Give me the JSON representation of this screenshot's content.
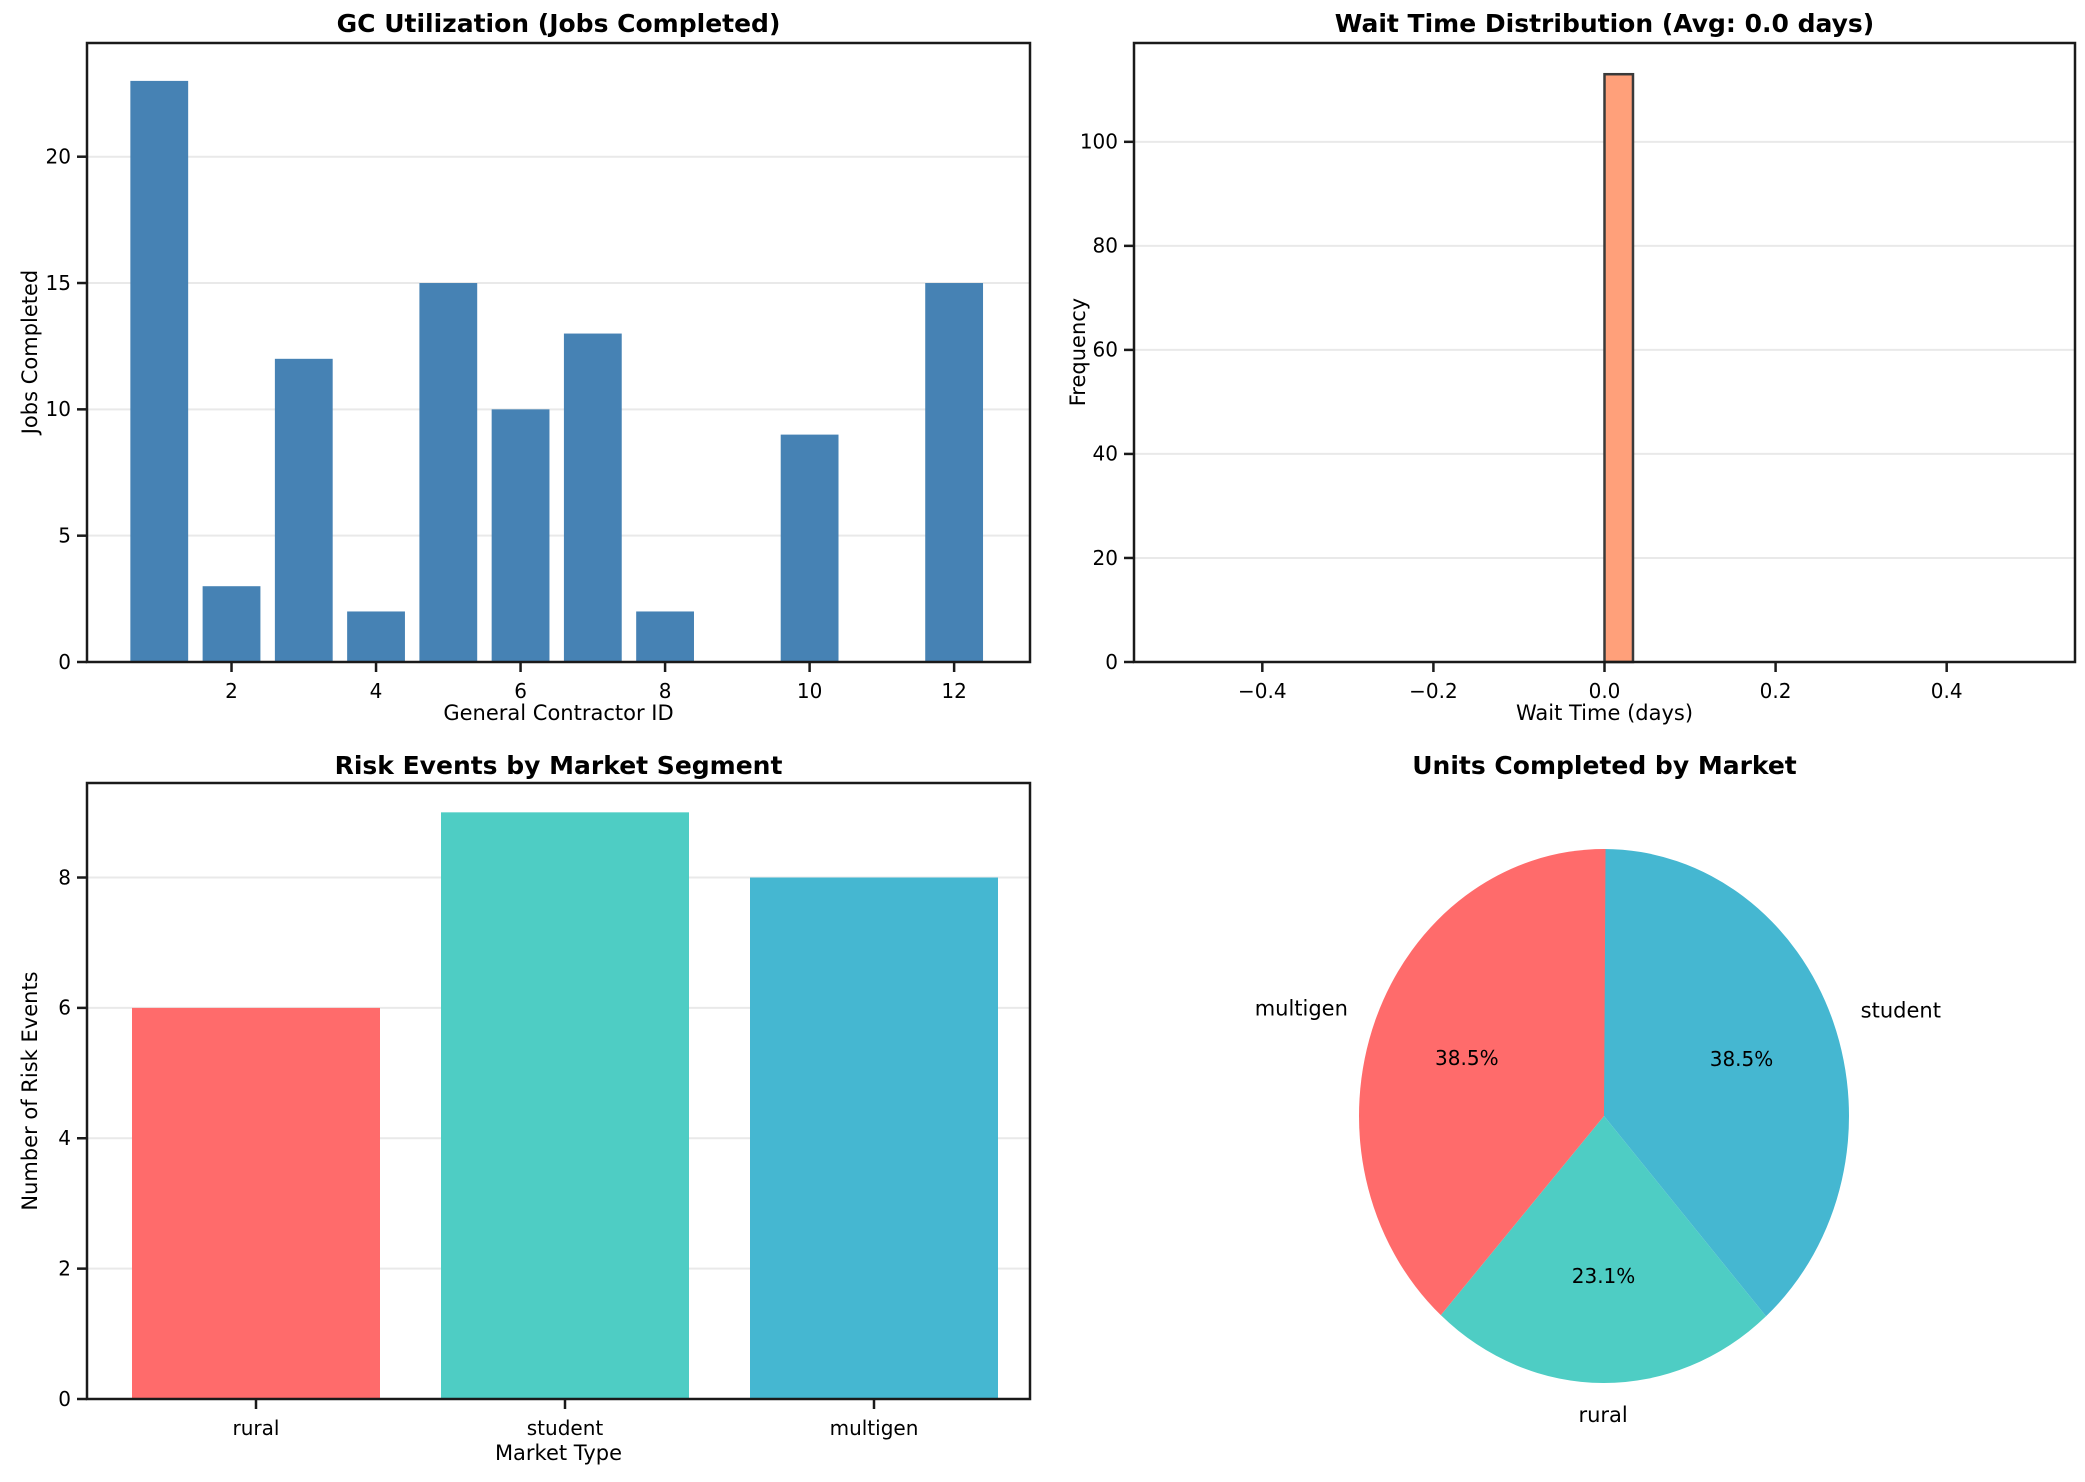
{
  "page": {
    "background": "#FFFFFF"
  },
  "chart_data": [
    {
      "id": "gc-utilization",
      "type": "bar",
      "title": "GC Utilization (Jobs Completed)",
      "xlabel": "General Contractor ID",
      "ylabel": "Jobs Completed",
      "x": [
        1,
        2,
        3,
        4,
        5,
        6,
        7,
        8,
        9,
        10,
        11,
        12
      ],
      "values": [
        23,
        3,
        12,
        2,
        15,
        10,
        13,
        2,
        0,
        9,
        0,
        15
      ],
      "bar_color": "#4682B4",
      "bar_width": 0.8,
      "xticks": [
        2,
        4,
        6,
        8,
        10,
        12
      ],
      "yticks": [
        0,
        5,
        10,
        15,
        20
      ],
      "xlim": [
        0.0,
        13.05
      ],
      "ylim": [
        0,
        24.5
      ],
      "grid": "y",
      "grid_color": "#E9E9E9"
    },
    {
      "id": "wait-time-distribution",
      "type": "bar",
      "title": "Wait Time Distribution (Avg: 0.0 days)",
      "xlabel": "Wait Time (days)",
      "ylabel": "Frequency",
      "bars": [
        {
          "x_start": 0.0,
          "x_end": 0.0333,
          "frequency": 113
        }
      ],
      "bar_color": "#FFA07A",
      "bar_edge_color": "#3A3A3A",
      "xticks": [
        -0.4,
        -0.2,
        0.0,
        0.2,
        0.4
      ],
      "yticks": [
        0,
        20,
        40,
        60,
        80,
        100
      ],
      "xlim": [
        -0.55,
        0.55
      ],
      "ylim": [
        0,
        119
      ],
      "grid": "y",
      "grid_color": "#E9E9E9"
    },
    {
      "id": "risk-events-by-segment",
      "type": "bar",
      "title": "Risk Events by Market Segment",
      "xlabel": "Market Type",
      "ylabel": "Number of Risk Events",
      "categories": [
        "rural",
        "student",
        "multigen"
      ],
      "values": [
        6,
        9,
        8
      ],
      "colors": [
        "#FF6B6B",
        "#4ECDC4",
        "#45B7D1"
      ],
      "yticks": [
        0,
        2,
        4,
        6,
        8
      ],
      "ylim": [
        0,
        9.45
      ],
      "grid": "y",
      "grid_color": "#E9E9E9"
    },
    {
      "id": "units-completed-by-market",
      "type": "pie",
      "title": "Units Completed by Market",
      "start_angle_deg": 90,
      "direction": "clockwise",
      "slices": [
        {
          "label": "student",
          "pct": 38.5,
          "pct_label": "38.5%",
          "color": "#45B7D1"
        },
        {
          "label": "rural",
          "pct": 23.1,
          "pct_label": "23.1%",
          "color": "#4ECDC4"
        },
        {
          "label": "multigen",
          "pct": 38.5,
          "pct_label": "38.5%",
          "color": "#FF6B6B"
        }
      ]
    }
  ]
}
